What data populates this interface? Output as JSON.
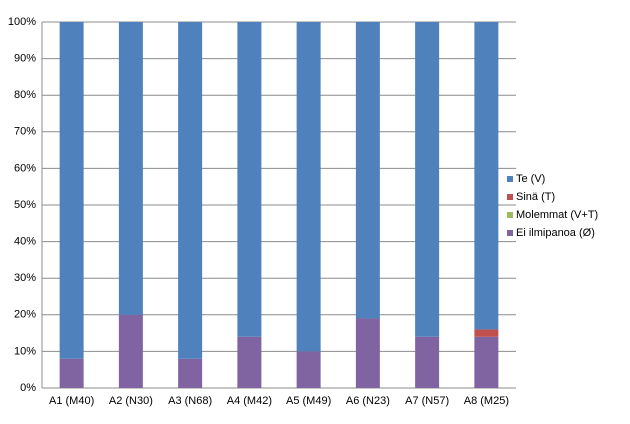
{
  "chart_data": {
    "type": "stacked_bar",
    "categories": [
      "A1 (M40)",
      "A2 (N30)",
      "A3 (N68)",
      "A4 (M42)",
      "A5 (M49)",
      "A6 (N23)",
      "A7 (N57)",
      "A8 (M25)"
    ],
    "series": [
      {
        "name": "Ei ilmipanoa (Ø)",
        "color": "#8064a2",
        "values": [
          8,
          20,
          8,
          14,
          10,
          19,
          14,
          14
        ]
      },
      {
        "name": "Molemmat (V+T)",
        "color": "#9bbb59",
        "values": [
          0,
          0,
          0,
          0,
          0,
          0,
          0,
          0
        ]
      },
      {
        "name": "Sinä (T)",
        "color": "#c0504d",
        "values": [
          0,
          0,
          0,
          0,
          0,
          0,
          0,
          2
        ]
      },
      {
        "name": "Te (V)",
        "color": "#4f81bd",
        "values": [
          92,
          80,
          92,
          86,
          90,
          81,
          86,
          84
        ]
      }
    ],
    "ylim": [
      0,
      100
    ],
    "yticks": [
      {
        "value": 0,
        "label": "0%"
      },
      {
        "value": 10,
        "label": "10%"
      },
      {
        "value": 20,
        "label": "20%"
      },
      {
        "value": 30,
        "label": "30%"
      },
      {
        "value": 40,
        "label": "40%"
      },
      {
        "value": 50,
        "label": "50%"
      },
      {
        "value": 60,
        "label": "60%"
      },
      {
        "value": 70,
        "label": "70%"
      },
      {
        "value": 80,
        "label": "80%"
      },
      {
        "value": 90,
        "label": "90%"
      },
      {
        "value": 100,
        "label": "100%"
      }
    ],
    "grid": true,
    "legend": "right"
  }
}
